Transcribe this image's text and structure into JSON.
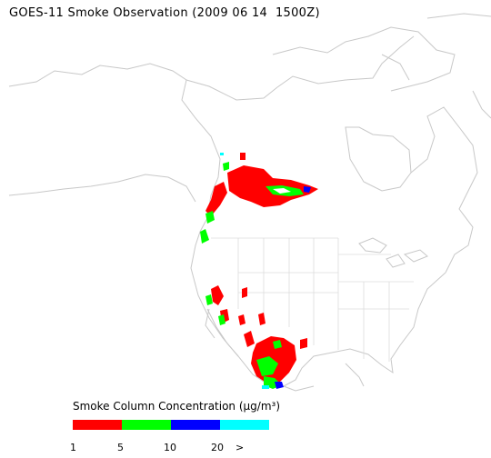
{
  "title": "GOES-11 Smoke Observation (2009 06 14  1500Z)",
  "legend": {
    "title": "Smoke Column Concentration (μg/m³)",
    "colors": [
      "#ff0000",
      "#00ff00",
      "#0000ff",
      "#00ffff"
    ],
    "ticks": [
      "1",
      "5",
      "10",
      "20",
      ">"
    ]
  },
  "map": {
    "coastline_color": "#c8c8c8",
    "smoke_regions": [
      "western-canada-plume",
      "bc-coast",
      "baja-california",
      "mexico-plume"
    ]
  }
}
